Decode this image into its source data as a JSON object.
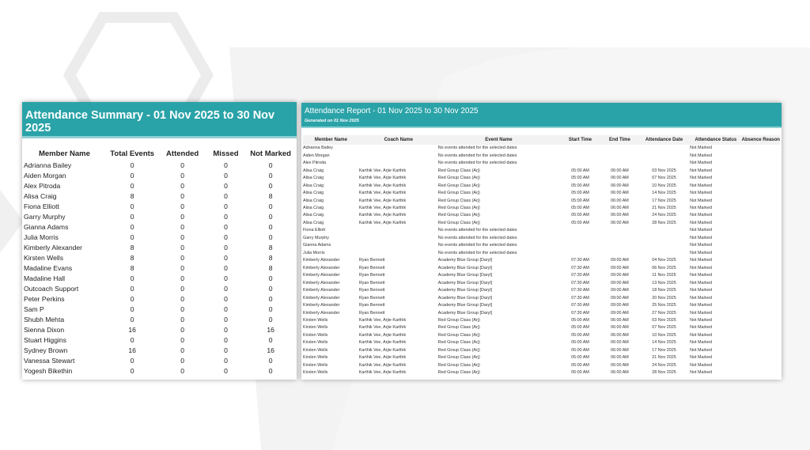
{
  "summary": {
    "title": "Attendance Summary - 01 Nov 2025 to 30 Nov 2025",
    "generated": "Generated on 01 Nov 2025",
    "columns": [
      "Member Name",
      "Total Events",
      "Attended",
      "Missed",
      "Not Marked"
    ],
    "rows": [
      [
        "Adrianna Bailey",
        "0",
        "0",
        "0",
        "0"
      ],
      [
        "Aiden Morgan",
        "0",
        "0",
        "0",
        "0"
      ],
      [
        "Alex Pitroda",
        "0",
        "0",
        "0",
        "0"
      ],
      [
        "Alisa Craig",
        "8",
        "0",
        "0",
        "8"
      ],
      [
        "Fiona Elliott",
        "0",
        "0",
        "0",
        "0"
      ],
      [
        "Garry Murphy",
        "0",
        "0",
        "0",
        "0"
      ],
      [
        "Gianna Adams",
        "0",
        "0",
        "0",
        "0"
      ],
      [
        "Julia Morris",
        "0",
        "0",
        "0",
        "0"
      ],
      [
        "Kimberly Alexander",
        "8",
        "0",
        "0",
        "8"
      ],
      [
        "Kirsten Wells",
        "8",
        "0",
        "0",
        "8"
      ],
      [
        "Madaline Evans",
        "8",
        "0",
        "0",
        "8"
      ],
      [
        "Madaline Hall",
        "0",
        "0",
        "0",
        "0"
      ],
      [
        "Outcoach Support",
        "0",
        "0",
        "0",
        "0"
      ],
      [
        "Peter Perkins",
        "0",
        "0",
        "0",
        "0"
      ],
      [
        "Sam P",
        "0",
        "0",
        "0",
        "0"
      ],
      [
        "Shubh Mehta",
        "0",
        "0",
        "0",
        "0"
      ],
      [
        "Sienna Dixon",
        "16",
        "0",
        "0",
        "16"
      ],
      [
        "Stuart Higgins",
        "0",
        "0",
        "0",
        "0"
      ],
      [
        "Sydney Brown",
        "16",
        "0",
        "0",
        "16"
      ],
      [
        "Vanessa Stewart",
        "0",
        "0",
        "0",
        "0"
      ],
      [
        "Yogesh Bikethin",
        "0",
        "0",
        "0",
        "0"
      ]
    ]
  },
  "report": {
    "title": "Attendance Report - 01 Nov 2025 to 30 Nov 2025",
    "generated": "Generated on 01 Nov 2025",
    "columns": [
      "Member Name",
      "Coach Name",
      "Event Name",
      "Start Time",
      "End Time",
      "Attendance Date",
      "Attendance Status",
      "Absence Reason"
    ],
    "rows": [
      [
        "Adrianna Bailey",
        "",
        "No events attended for the selected dates",
        "",
        "",
        "",
        "Not Marked",
        ""
      ],
      [
        "Aiden Morgan",
        "",
        "No events attended for the selected dates",
        "",
        "",
        "",
        "Not Marked",
        ""
      ],
      [
        "Alex Pitroda",
        "",
        "No events attended for the selected dates",
        "",
        "",
        "",
        "Not Marked",
        ""
      ],
      [
        "Alisa Craig",
        "Karthik Vee, Arjie Karthik",
        "Red Group Class (Arj)",
        "05:00 AM",
        "06:00 AM",
        "03 Nov 2025",
        "Not Marked",
        ""
      ],
      [
        "Alisa Craig",
        "Karthik Vee, Arjie Karthik",
        "Red Group Class (Arj)",
        "05:00 AM",
        "06:00 AM",
        "07 Nov 2025",
        "Not Marked",
        ""
      ],
      [
        "Alisa Craig",
        "Karthik Vee, Arjie Karthik",
        "Red Group Class (Arj)",
        "05:00 AM",
        "06:00 AM",
        "10 Nov 2025",
        "Not Marked",
        ""
      ],
      [
        "Alisa Craig",
        "Karthik Vee, Arjie Karthik",
        "Red Group Class (Arj)",
        "05:00 AM",
        "06:00 AM",
        "14 Nov 2025",
        "Not Marked",
        ""
      ],
      [
        "Alisa Craig",
        "Karthik Vee, Arjie Karthik",
        "Red Group Class (Arj)",
        "05:00 AM",
        "06:00 AM",
        "17 Nov 2025",
        "Not Marked",
        ""
      ],
      [
        "Alisa Craig",
        "Karthik Vee, Arjie Karthik",
        "Red Group Class (Arj)",
        "05:00 AM",
        "06:00 AM",
        "21 Nov 2025",
        "Not Marked",
        ""
      ],
      [
        "Alisa Craig",
        "Karthik Vee, Arjie Karthik",
        "Red Group Class (Arj)",
        "05:00 AM",
        "06:00 AM",
        "24 Nov 2025",
        "Not Marked",
        ""
      ],
      [
        "Alisa Craig",
        "Karthik Vee, Arjie Karthik",
        "Red Group Class (Arj)",
        "05:00 AM",
        "06:00 AM",
        "28 Nov 2025",
        "Not Marked",
        ""
      ],
      [
        "Fiona Elliott",
        "",
        "No events attended for the selected dates",
        "",
        "",
        "",
        "Not Marked",
        ""
      ],
      [
        "Garry Murphy",
        "",
        "No events attended for the selected dates",
        "",
        "",
        "",
        "Not Marked",
        ""
      ],
      [
        "Gianna Adams",
        "",
        "No events attended for the selected dates",
        "",
        "",
        "",
        "Not Marked",
        ""
      ],
      [
        "Julia Morris",
        "",
        "No events attended for the selected dates",
        "",
        "",
        "",
        "Not Marked",
        ""
      ],
      [
        "Kimberly Alexander",
        "Ryan Bennett",
        "Academy Blue Group [Daryl]",
        "07:30 AM",
        "09:00 AM",
        "04 Nov 2025",
        "Not Marked",
        ""
      ],
      [
        "Kimberly Alexander",
        "Ryan Bennett",
        "Academy Blue Group [Daryl]",
        "07:30 AM",
        "09:00 AM",
        "06 Nov 2025",
        "Not Marked",
        ""
      ],
      [
        "Kimberly Alexander",
        "Ryan Bennett",
        "Academy Blue Group [Daryl]",
        "07:30 AM",
        "09:00 AM",
        "11 Nov 2025",
        "Not Marked",
        ""
      ],
      [
        "Kimberly Alexander",
        "Ryan Bennett",
        "Academy Blue Group [Daryl]",
        "07:30 AM",
        "09:00 AM",
        "13 Nov 2025",
        "Not Marked",
        ""
      ],
      [
        "Kimberly Alexander",
        "Ryan Bennett",
        "Academy Blue Group [Daryl]",
        "07:30 AM",
        "09:00 AM",
        "18 Nov 2025",
        "Not Marked",
        ""
      ],
      [
        "Kimberly Alexander",
        "Ryan Bennett",
        "Academy Blue Group [Daryl]",
        "07:30 AM",
        "09:00 AM",
        "20 Nov 2025",
        "Not Marked",
        ""
      ],
      [
        "Kimberly Alexander",
        "Ryan Bennett",
        "Academy Blue Group [Daryl]",
        "07:30 AM",
        "09:00 AM",
        "25 Nov 2025",
        "Not Marked",
        ""
      ],
      [
        "Kimberly Alexander",
        "Ryan Bennett",
        "Academy Blue Group [Daryl]",
        "07:30 AM",
        "09:00 AM",
        "27 Nov 2025",
        "Not Marked",
        ""
      ],
      [
        "Kirsten Wells",
        "Karthik Vee, Arjie Karthik",
        "Red Group Class (Arj)",
        "05:00 AM",
        "06:00 AM",
        "03 Nov 2025",
        "Not Marked",
        ""
      ],
      [
        "Kirsten Wells",
        "Karthik Vee, Arjie Karthik",
        "Red Group Class (Arj)",
        "05:00 AM",
        "06:00 AM",
        "07 Nov 2025",
        "Not Marked",
        ""
      ],
      [
        "Kirsten Wells",
        "Karthik Vee, Arjie Karthik",
        "Red Group Class (Arj)",
        "05:00 AM",
        "06:00 AM",
        "10 Nov 2025",
        "Not Marked",
        ""
      ],
      [
        "Kirsten Wells",
        "Karthik Vee, Arjie Karthik",
        "Red Group Class (Arj)",
        "05:00 AM",
        "06:00 AM",
        "14 Nov 2025",
        "Not Marked",
        ""
      ],
      [
        "Kirsten Wells",
        "Karthik Vee, Arjie Karthik",
        "Red Group Class (Arj)",
        "05:00 AM",
        "06:00 AM",
        "17 Nov 2025",
        "Not Marked",
        ""
      ],
      [
        "Kirsten Wells",
        "Karthik Vee, Arjie Karthik",
        "Red Group Class (Arj)",
        "05:00 AM",
        "06:00 AM",
        "21 Nov 2025",
        "Not Marked",
        ""
      ],
      [
        "Kirsten Wells",
        "Karthik Vee, Arjie Karthik",
        "Red Group Class (Arj)",
        "05:00 AM",
        "06:00 AM",
        "24 Nov 2025",
        "Not Marked",
        ""
      ],
      [
        "Kirsten Wells",
        "Karthik Vee, Arjie Karthik",
        "Red Group Class (Arj)",
        "05:00 AM",
        "06:00 AM",
        "28 Nov 2025",
        "Not Marked",
        ""
      ]
    ]
  },
  "colors": {
    "header": "#2aa3a8",
    "background_shape": "#f0f0f0"
  }
}
